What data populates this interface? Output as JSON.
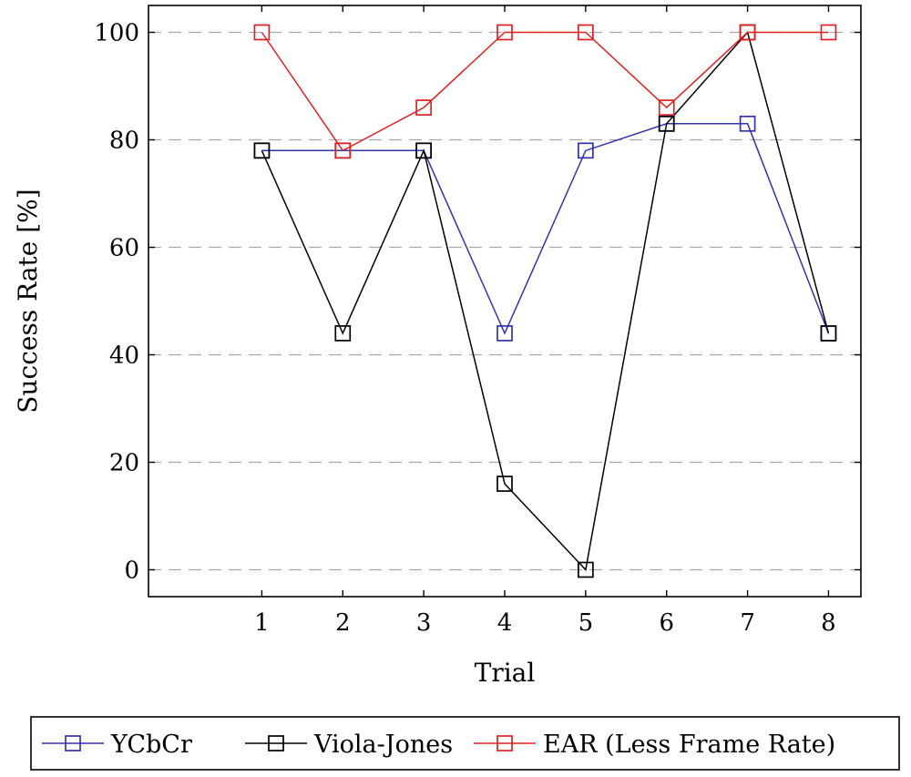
{
  "chart_data": {
    "type": "line",
    "title": "",
    "xlabel": "Trial",
    "ylabel": "Success Rate [%]",
    "x": [
      1,
      2,
      3,
      4,
      5,
      6,
      7,
      8
    ],
    "xlim": [
      -0.4,
      8.4
    ],
    "ylim": [
      -5,
      105
    ],
    "yticks": [
      0,
      20,
      40,
      60,
      80,
      100
    ],
    "grid": "horizontal-dashed",
    "legend_position": "bottom",
    "marker": "square",
    "series": [
      {
        "name": "YCbCr",
        "color": "#3333aa",
        "values": [
          78,
          78,
          78,
          44,
          78,
          83,
          83,
          44
        ]
      },
      {
        "name": "Viola-Jones",
        "color": "#000000",
        "values": [
          78,
          44,
          78,
          16,
          0,
          83,
          100,
          44
        ]
      },
      {
        "name": "EAR (Less Frame Rate)",
        "color": "#dd2222",
        "values": [
          100,
          78,
          86,
          100,
          100,
          86,
          100,
          100
        ]
      }
    ]
  }
}
